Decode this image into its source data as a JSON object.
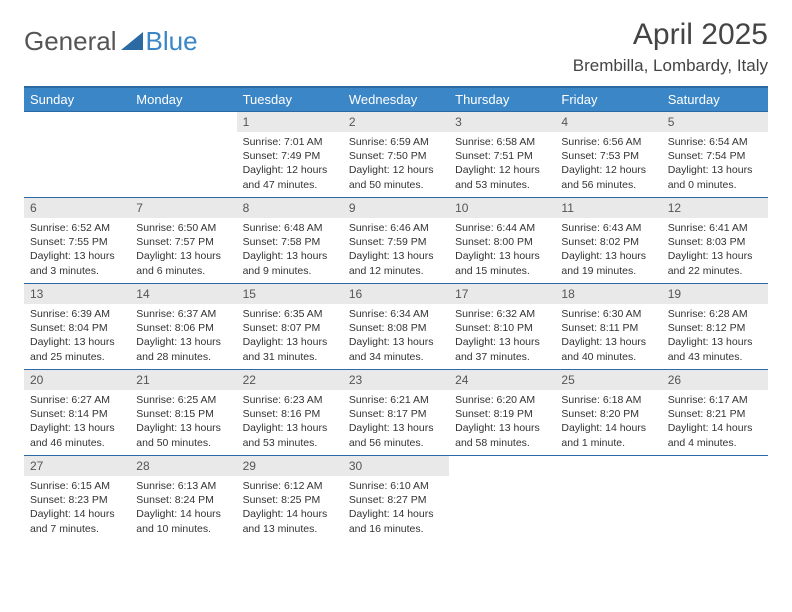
{
  "logo": {
    "text1": "General",
    "text2": "Blue",
    "text1_color": "#666666",
    "text2_color": "#3b86c6",
    "triangle_color": "#2b6aa3"
  },
  "title": "April 2025",
  "location": "Brembilla, Lombardy, Italy",
  "colors": {
    "header_bg": "#3b86c6",
    "header_border": "#2b6aa3",
    "row_border": "#2b6aa3",
    "daynum_bg": "#e9e9e9",
    "text": "#333333",
    "title_color": "#444444"
  },
  "typography": {
    "month_title_fontsize": 30,
    "location_fontsize": 17,
    "dayheader_fontsize": 13,
    "daynum_fontsize": 12,
    "body_fontsize": 10.5
  },
  "calendar": {
    "type": "table",
    "columns": [
      "Sunday",
      "Monday",
      "Tuesday",
      "Wednesday",
      "Thursday",
      "Friday",
      "Saturday"
    ],
    "weeks": [
      [
        null,
        null,
        {
          "n": "1",
          "sr": "7:01 AM",
          "ss": "7:49 PM",
          "dl": "12 hours and 47 minutes."
        },
        {
          "n": "2",
          "sr": "6:59 AM",
          "ss": "7:50 PM",
          "dl": "12 hours and 50 minutes."
        },
        {
          "n": "3",
          "sr": "6:58 AM",
          "ss": "7:51 PM",
          "dl": "12 hours and 53 minutes."
        },
        {
          "n": "4",
          "sr": "6:56 AM",
          "ss": "7:53 PM",
          "dl": "12 hours and 56 minutes."
        },
        {
          "n": "5",
          "sr": "6:54 AM",
          "ss": "7:54 PM",
          "dl": "13 hours and 0 minutes."
        }
      ],
      [
        {
          "n": "6",
          "sr": "6:52 AM",
          "ss": "7:55 PM",
          "dl": "13 hours and 3 minutes."
        },
        {
          "n": "7",
          "sr": "6:50 AM",
          "ss": "7:57 PM",
          "dl": "13 hours and 6 minutes."
        },
        {
          "n": "8",
          "sr": "6:48 AM",
          "ss": "7:58 PM",
          "dl": "13 hours and 9 minutes."
        },
        {
          "n": "9",
          "sr": "6:46 AM",
          "ss": "7:59 PM",
          "dl": "13 hours and 12 minutes."
        },
        {
          "n": "10",
          "sr": "6:44 AM",
          "ss": "8:00 PM",
          "dl": "13 hours and 15 minutes."
        },
        {
          "n": "11",
          "sr": "6:43 AM",
          "ss": "8:02 PM",
          "dl": "13 hours and 19 minutes."
        },
        {
          "n": "12",
          "sr": "6:41 AM",
          "ss": "8:03 PM",
          "dl": "13 hours and 22 minutes."
        }
      ],
      [
        {
          "n": "13",
          "sr": "6:39 AM",
          "ss": "8:04 PM",
          "dl": "13 hours and 25 minutes."
        },
        {
          "n": "14",
          "sr": "6:37 AM",
          "ss": "8:06 PM",
          "dl": "13 hours and 28 minutes."
        },
        {
          "n": "15",
          "sr": "6:35 AM",
          "ss": "8:07 PM",
          "dl": "13 hours and 31 minutes."
        },
        {
          "n": "16",
          "sr": "6:34 AM",
          "ss": "8:08 PM",
          "dl": "13 hours and 34 minutes."
        },
        {
          "n": "17",
          "sr": "6:32 AM",
          "ss": "8:10 PM",
          "dl": "13 hours and 37 minutes."
        },
        {
          "n": "18",
          "sr": "6:30 AM",
          "ss": "8:11 PM",
          "dl": "13 hours and 40 minutes."
        },
        {
          "n": "19",
          "sr": "6:28 AM",
          "ss": "8:12 PM",
          "dl": "13 hours and 43 minutes."
        }
      ],
      [
        {
          "n": "20",
          "sr": "6:27 AM",
          "ss": "8:14 PM",
          "dl": "13 hours and 46 minutes."
        },
        {
          "n": "21",
          "sr": "6:25 AM",
          "ss": "8:15 PM",
          "dl": "13 hours and 50 minutes."
        },
        {
          "n": "22",
          "sr": "6:23 AM",
          "ss": "8:16 PM",
          "dl": "13 hours and 53 minutes."
        },
        {
          "n": "23",
          "sr": "6:21 AM",
          "ss": "8:17 PM",
          "dl": "13 hours and 56 minutes."
        },
        {
          "n": "24",
          "sr": "6:20 AM",
          "ss": "8:19 PM",
          "dl": "13 hours and 58 minutes."
        },
        {
          "n": "25",
          "sr": "6:18 AM",
          "ss": "8:20 PM",
          "dl": "14 hours and 1 minute."
        },
        {
          "n": "26",
          "sr": "6:17 AM",
          "ss": "8:21 PM",
          "dl": "14 hours and 4 minutes."
        }
      ],
      [
        {
          "n": "27",
          "sr": "6:15 AM",
          "ss": "8:23 PM",
          "dl": "14 hours and 7 minutes."
        },
        {
          "n": "28",
          "sr": "6:13 AM",
          "ss": "8:24 PM",
          "dl": "14 hours and 10 minutes."
        },
        {
          "n": "29",
          "sr": "6:12 AM",
          "ss": "8:25 PM",
          "dl": "14 hours and 13 minutes."
        },
        {
          "n": "30",
          "sr": "6:10 AM",
          "ss": "8:27 PM",
          "dl": "14 hours and 16 minutes."
        },
        null,
        null,
        null
      ]
    ],
    "labels": {
      "sunrise": "Sunrise:",
      "sunset": "Sunset:",
      "daylight": "Daylight:"
    }
  }
}
